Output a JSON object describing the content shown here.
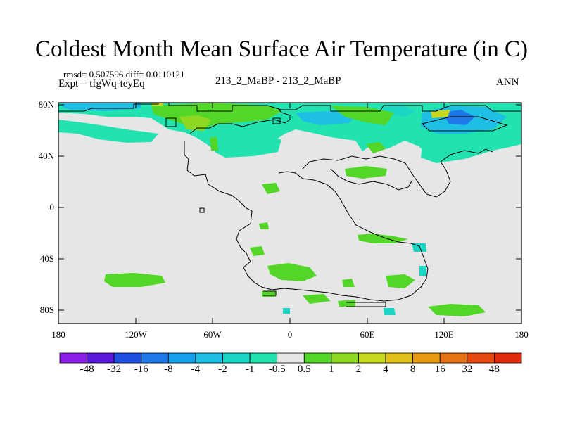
{
  "title": "Coldest Month Mean Surface Air Temperature (in C)",
  "stats": "rmsd= 0.507596 diff= 0.0110121",
  "expt": "Expt = tfgWq-teyEq",
  "case_label": "213_2_MaBP - 213_2_MaBP",
  "season": "ANN",
  "lat_ticks": [
    "80N",
    "40N",
    "0",
    "40S",
    "80S"
  ],
  "lon_ticks": [
    "180",
    "120W",
    "60W",
    "0",
    "60E",
    "120E",
    "180"
  ],
  "colorbar": {
    "colors": [
      "#8a1ee6",
      "#5a18d8",
      "#2050e0",
      "#1e78e8",
      "#16a0ea",
      "#1ebfe4",
      "#1ad6c4",
      "#22e2b0",
      "#e6e6e6",
      "#54d628",
      "#8cd822",
      "#c8d81e",
      "#e0c01a",
      "#e69a14",
      "#e67214",
      "#e64a10",
      "#e02a0c"
    ],
    "labels": [
      "-48",
      "-32",
      "-16",
      "-8",
      "-4",
      "-2",
      "-1",
      "-0.5",
      "0.5",
      "1",
      "2",
      "4",
      "8",
      "16",
      "32",
      "48"
    ]
  }
}
